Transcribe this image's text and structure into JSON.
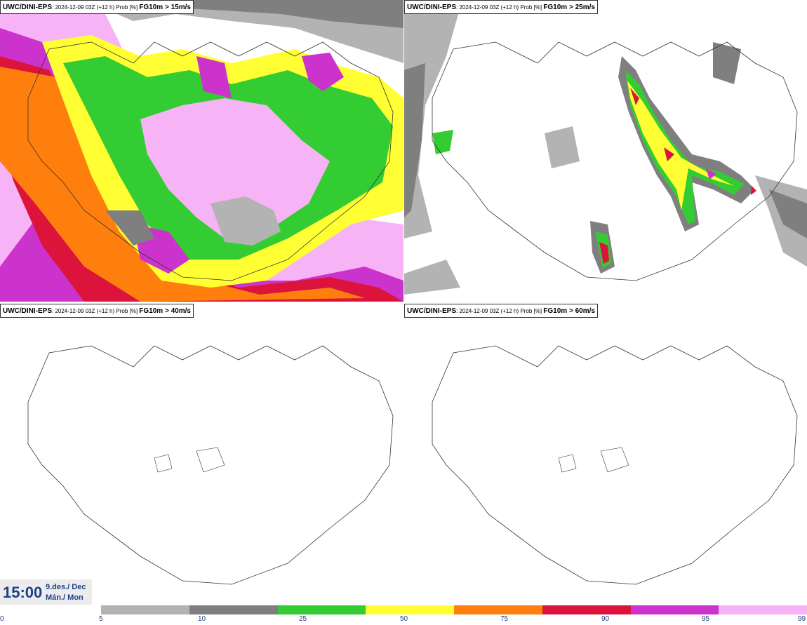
{
  "panels": [
    {
      "model": "UWC/DINI-EPS",
      "run": ": 2024-12-09 03Z (+12 h) Prob [%] ",
      "field": "FG10m > 15m/s"
    },
    {
      "model": "UWC/DINI-EPS",
      "run": ": 2024-12-09 03Z (+12 h) Prob [%] ",
      "field": "FG10m > 25m/s"
    },
    {
      "model": "UWC/DINI-EPS",
      "run": ": 2024-12-09 03Z (+12 h) Prob [%] ",
      "field": "FG10m > 40m/s"
    },
    {
      "model": "UWC/DINI-EPS",
      "run": ": 2024-12-09 03Z (+12 h) Prob [%] ",
      "field": "FG10m > 60m/s"
    }
  ],
  "valid_time": {
    "time": "15:00",
    "date_line": "9.des./ Dec",
    "day_line": "Mán./ Mon"
  },
  "legend": {
    "ticks": [
      "0",
      "5",
      "10",
      "25",
      "50",
      "75",
      "90",
      "95",
      "99"
    ],
    "colors": [
      "#b3b3b3",
      "#7f7f7f",
      "#33cc33",
      "#ffff33",
      "#ff7f0e",
      "#dc143c",
      "#cc33cc",
      "#f6b3f6"
    ]
  },
  "map_colors": {
    "coast": "#333333",
    "light_gray": "#b3b3b3",
    "dark_gray": "#7f7f7f",
    "green": "#33cc33",
    "yellow": "#ffff33",
    "orange": "#ff7f0e",
    "red": "#dc143c",
    "purple": "#cc33cc",
    "pink": "#f6b3f6"
  }
}
